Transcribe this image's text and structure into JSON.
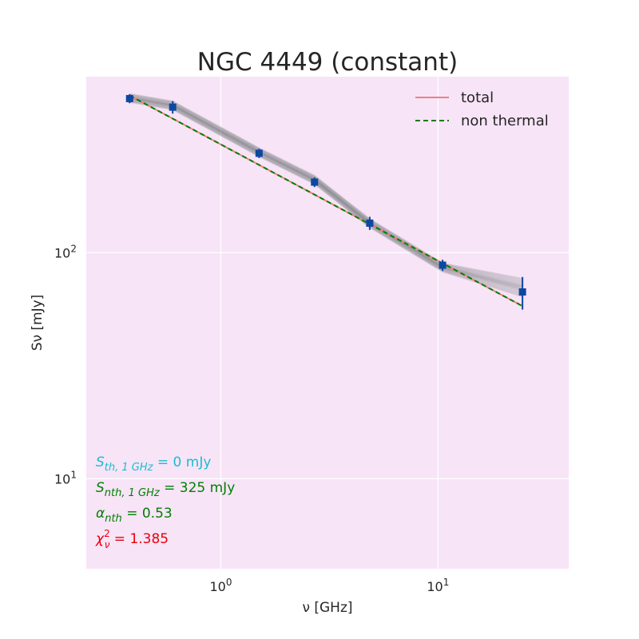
{
  "chart_data": {
    "type": "scatter",
    "title": "NGC 4449 (constant)",
    "xlabel": "ν [GHz]",
    "ylabel": "Sν [mJy]",
    "xscale": "log",
    "yscale": "log",
    "xlim": [
      0.24,
      40
    ],
    "ylim": [
      4,
      600
    ],
    "xticks": [
      {
        "value": 1,
        "base": "10",
        "exp": "0"
      },
      {
        "value": 10,
        "base": "10",
        "exp": "1"
      }
    ],
    "yticks": [
      {
        "value": 10,
        "base": "10",
        "exp": "1"
      },
      {
        "value": 100,
        "base": "10",
        "exp": "2"
      }
    ],
    "grid": true,
    "legend": {
      "placement": "top-right",
      "entries": [
        "total",
        "non thermal"
      ]
    },
    "series": [
      {
        "name": "data",
        "style": "markers-with-errorbars",
        "color": "#0d47a1",
        "x": [
          0.38,
          0.6,
          1.5,
          2.7,
          4.85,
          10.5,
          24.5
        ],
        "y": [
          480,
          440,
          275,
          205,
          135,
          88,
          67
        ],
        "yerr": [
          22,
          28,
          13,
          10,
          9,
          5,
          11
        ]
      },
      {
        "name": "total",
        "style": "line",
        "color": "#f07f7f",
        "x": [
          0.38,
          24.5
        ],
        "y": [
          495,
          58
        ]
      },
      {
        "name": "non thermal",
        "style": "dashed",
        "color": "#007f00",
        "x": [
          0.38,
          24.5
        ],
        "y": [
          495,
          58
        ]
      }
    ],
    "mcmc_band": {
      "color": "#5f6b6b",
      "x": [
        0.38,
        0.6,
        1.5,
        2.7,
        4.85,
        10.5,
        24.5
      ],
      "y": [
        483,
        448,
        278,
        210,
        135,
        86,
        70
      ]
    },
    "annotations": [
      {
        "sym": "S",
        "sub": "th, 1 GHz",
        "sup": "",
        "text": " = 0 mJy",
        "color": "#17becf"
      },
      {
        "sym": "S",
        "sub": "nth, 1 GHz",
        "sup": "",
        "text": " = 325 mJy",
        "color": "#007f00"
      },
      {
        "sym": "α",
        "sub": "nth",
        "sup": "",
        "text": " = 0.53",
        "color": "#007f00"
      },
      {
        "sym": "χ",
        "sub": "ν",
        "sup": "2",
        "text": " = 1.385",
        "color": "#e8000b"
      }
    ],
    "colors": {
      "plot_background": "#f7e4f7",
      "grid": "#ffffff"
    }
  }
}
